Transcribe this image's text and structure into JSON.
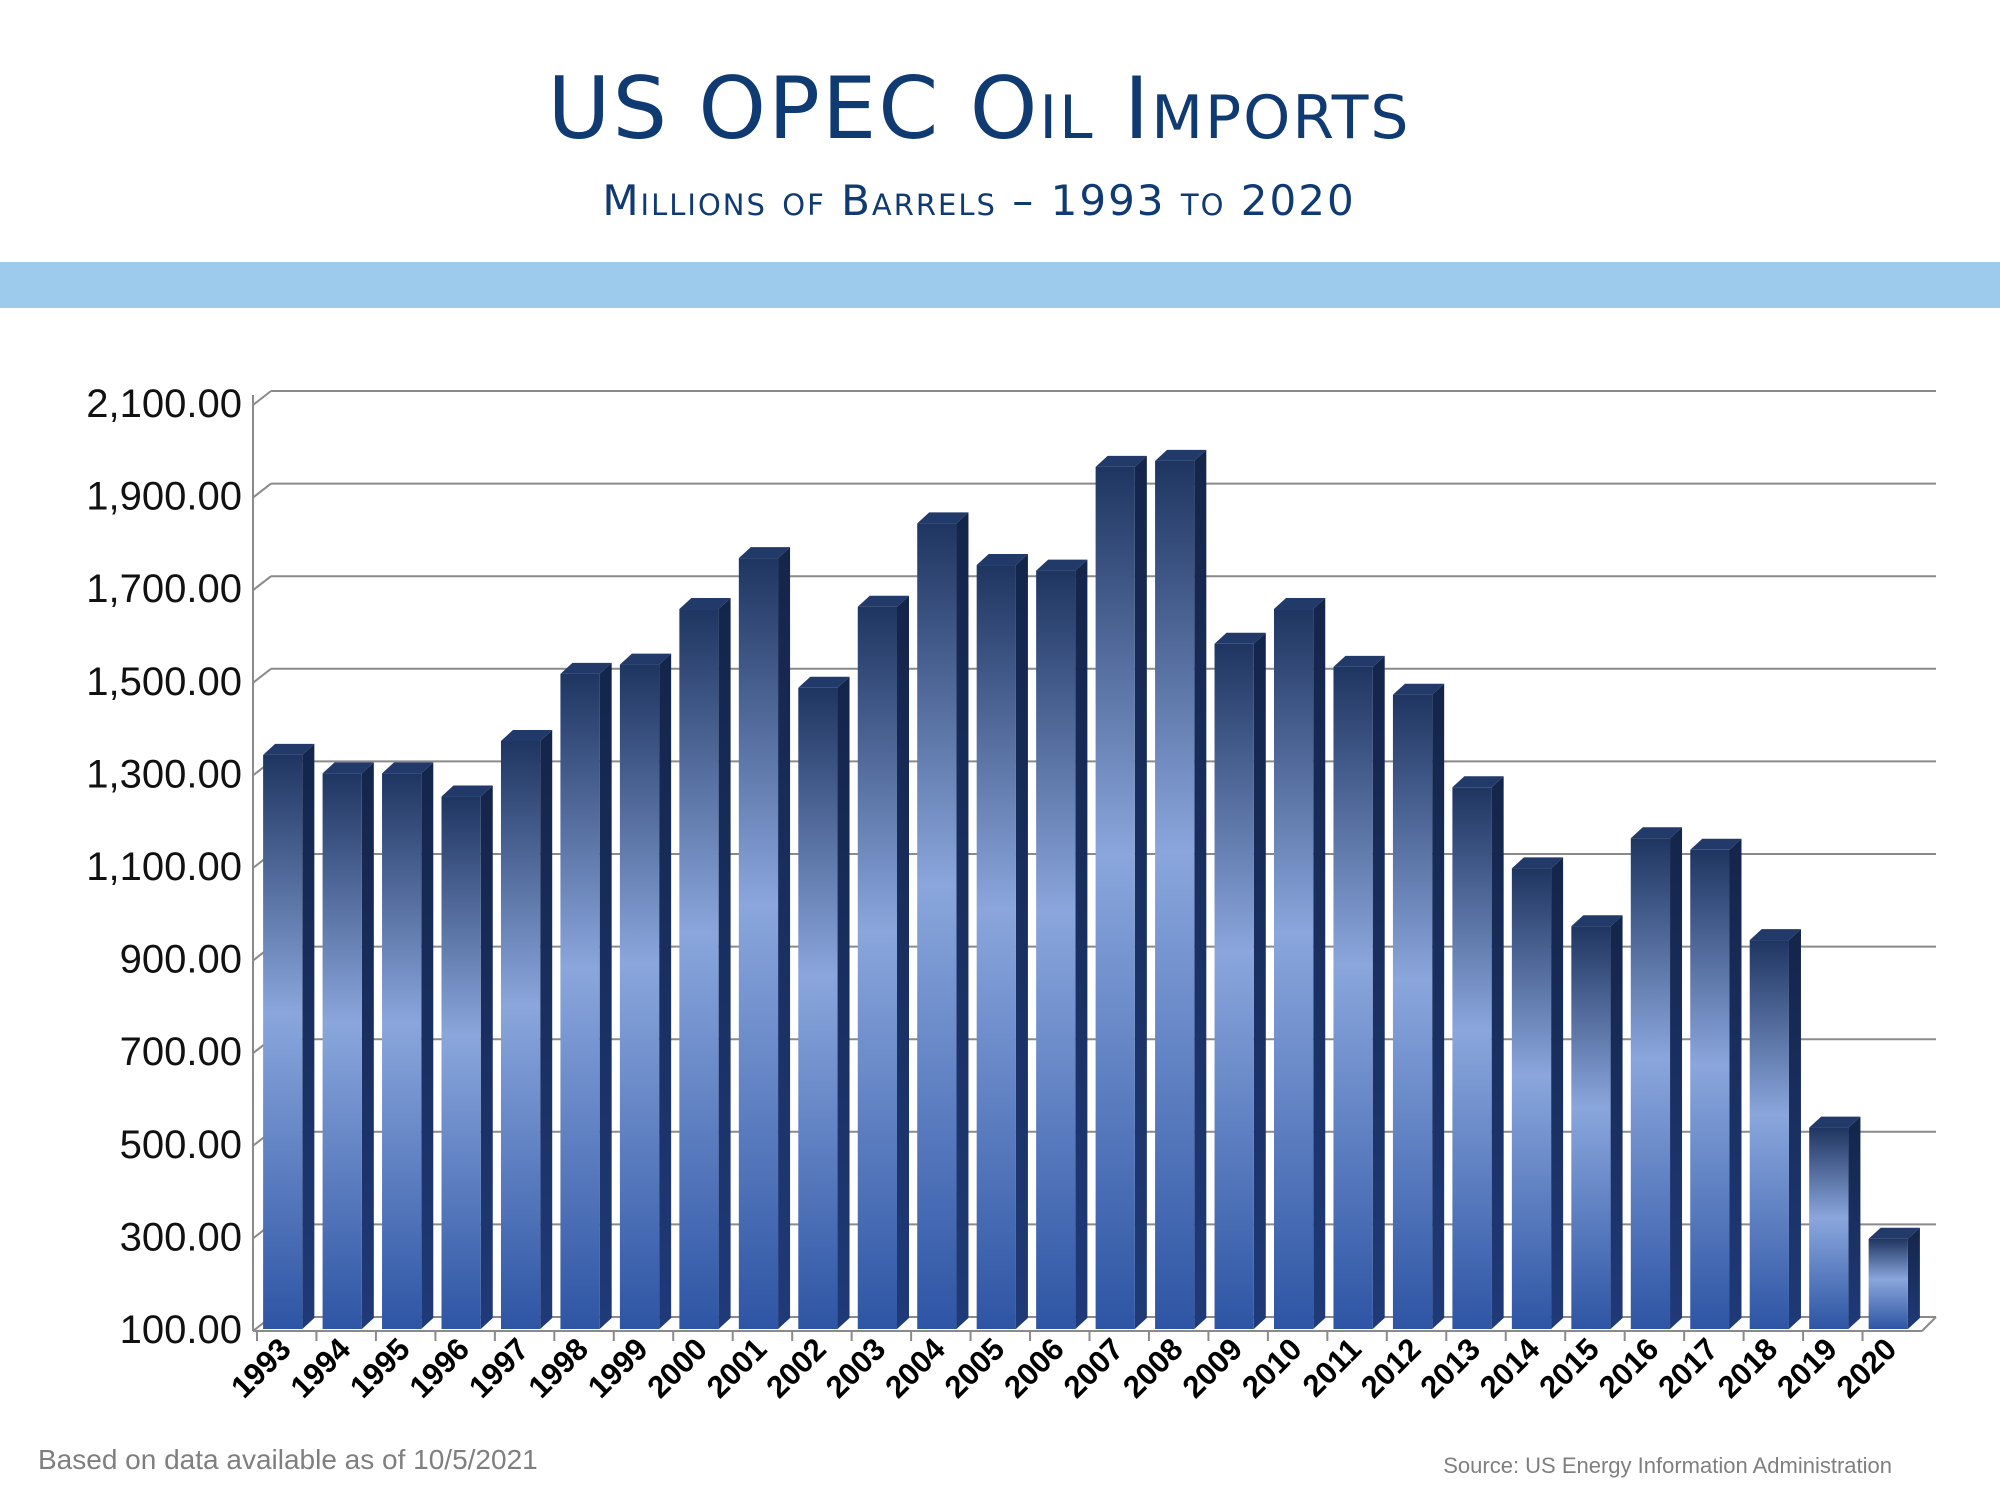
{
  "slide": {
    "title": "US OPEC Oil Imports",
    "subtitle": "Millions of Barrels – 1993 to 2020",
    "footnote": "Based on data available as of 10/5/2021",
    "source": "Source:  US Energy Information Administration"
  },
  "colors": {
    "title": "#103a72",
    "band": "#9ccbec",
    "bar_dark": "#1f3561",
    "bar_light": "#8aa6dc",
    "bar_base": "#2e55a4",
    "grid": "#8a8a8a",
    "footer_text": "#7f7f7f"
  },
  "chart_data": {
    "type": "bar",
    "style": "3d-columns",
    "categories": [
      "1993",
      "1994",
      "1995",
      "1996",
      "1997",
      "1998",
      "1999",
      "2000",
      "2001",
      "2002",
      "2003",
      "2004",
      "2005",
      "2006",
      "2007",
      "2008",
      "2009",
      "2010",
      "2011",
      "2012",
      "2013",
      "2014",
      "2015",
      "2016",
      "2017",
      "2018",
      "2019",
      "2020"
    ],
    "series": [
      {
        "values": [
          1340,
          1300,
          1300,
          1250,
          1370,
          1515,
          1535,
          1655,
          1765,
          1485,
          1660,
          1840,
          1750,
          1738,
          1962,
          1975,
          1580,
          1655,
          1530,
          1470,
          1270,
          1095,
          970,
          1160,
          1135,
          940,
          535,
          295
        ]
      }
    ],
    "y_ticks": [
      "100.00",
      "300.00",
      "500.00",
      "700.00",
      "900.00",
      "1,100.00",
      "1,300.00",
      "1,500.00",
      "1,700.00",
      "1,900.00",
      "2,100.00"
    ],
    "ylim": [
      100,
      2100
    ],
    "grid": true,
    "legend": "none"
  }
}
